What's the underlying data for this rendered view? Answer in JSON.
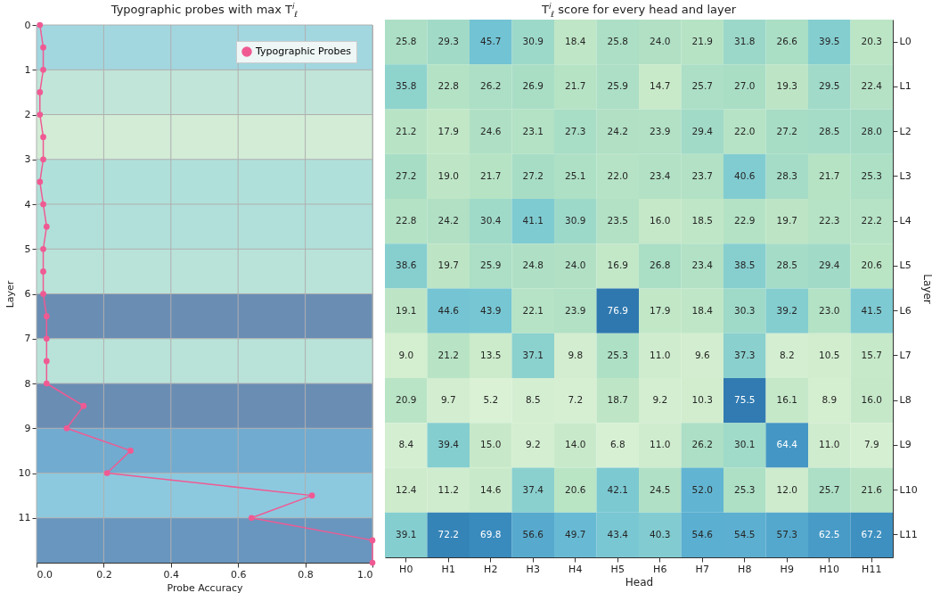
{
  "chart_data": [
    {
      "type": "line",
      "title": "Typographic probes with max T$^{i}$$_{ℓ}$",
      "xlabel": "Probe Accuracy",
      "ylabel": "Layer",
      "orientation": "horizontal",
      "xlim": [
        0,
        1
      ],
      "xticks": [
        {
          "value": 0,
          "label": "0.0"
        },
        0.2,
        0.4,
        0.6,
        0.8,
        {
          "value": 1,
          "label": "1.0"
        }
      ],
      "ylim": [
        12,
        0
      ],
      "yticks": [
        0,
        1,
        2,
        3,
        4,
        5,
        6,
        7,
        8,
        9,
        10,
        11
      ],
      "grid": true,
      "legend": "top right",
      "marker": "circle",
      "line_style": "solid",
      "series": [
        {
          "name": "Typographic Probes",
          "color": "#f05a93",
          "x": [
            0,
            0.5,
            1,
            1.5,
            2,
            2.5,
            3,
            3.5,
            4,
            4.5,
            5,
            5.5,
            6,
            6.5,
            7,
            7.5,
            8,
            8.5,
            9,
            9.5,
            10,
            10.5,
            11,
            11.5,
            12
          ],
          "values": [
            0.01,
            0.02,
            0.02,
            0.01,
            0.01,
            0.02,
            0.02,
            0.01,
            0.02,
            0.03,
            0.02,
            0.02,
            0.02,
            0.03,
            0.03,
            0.03,
            0.03,
            0.14,
            0.09,
            0.28,
            0.21,
            0.82,
            0.64,
            1.0,
            1.0
          ]
        }
      ],
      "bands": [
        {
          "axis": "y",
          "from": 0,
          "to": 1,
          "color": "#a2d7e0"
        },
        {
          "axis": "y",
          "from": 1,
          "to": 2,
          "color": "#c1e5d8"
        },
        {
          "axis": "y",
          "from": 2,
          "to": 3,
          "color": "#d2ecd6"
        },
        {
          "axis": "y",
          "from": 3,
          "to": 4,
          "color": "#b0e0da"
        },
        {
          "axis": "y",
          "from": 4,
          "to": 5,
          "color": "#b1e0da"
        },
        {
          "axis": "y",
          "from": 5,
          "to": 6,
          "color": "#b9e3d9"
        },
        {
          "axis": "y",
          "from": 6,
          "to": 7,
          "color": "#6a8db4"
        },
        {
          "axis": "y",
          "from": 7,
          "to": 8,
          "color": "#b9e3d9"
        },
        {
          "axis": "y",
          "from": 8,
          "to": 9,
          "color": "#6a8db4"
        },
        {
          "axis": "y",
          "from": 9,
          "to": 10,
          "color": "#71abd0"
        },
        {
          "axis": "y",
          "from": 10,
          "to": 11,
          "color": "#8cc9df"
        },
        {
          "axis": "y",
          "from": 11,
          "to": 12,
          "color": "#6896bf"
        }
      ]
    },
    {
      "type": "heatmap",
      "title": "T$^{i}$$_{ℓ}$ score for every head and layer",
      "xlabel": "Head",
      "ylabel": "Layer",
      "categories": [
        "H0",
        "H1",
        "H2",
        "H3",
        "H4",
        "H5",
        "H6",
        "H7",
        "H8",
        "H9",
        "H10",
        "H11"
      ],
      "y_categories": [
        "L0",
        "L1",
        "L2",
        "L3",
        "L4",
        "L5",
        "L6",
        "L7",
        "L8",
        "L9",
        "L10",
        "L11"
      ],
      "cell_labels": [
        [
          "25.8",
          "29.3",
          "45.7",
          "30.9",
          "18.4",
          "25.8",
          "24.0",
          "21.9",
          "31.8",
          "26.6",
          "39.5",
          "20.3"
        ],
        [
          "35.8",
          "22.8",
          "26.2",
          "26.9",
          "21.7",
          "25.9",
          "14.7",
          "25.7",
          "27.0",
          "19.3",
          "29.5",
          "22.4"
        ],
        [
          "21.2",
          "17.9",
          "24.6",
          "23.1",
          "27.3",
          "24.2",
          "23.9",
          "29.4",
          "22.0",
          "27.2",
          "28.5",
          "28.0"
        ],
        [
          "27.2",
          "19.0",
          "21.7",
          "27.2",
          "25.1",
          "22.0",
          "23.4",
          "23.7",
          "40.6",
          "28.3",
          "21.7",
          "25.3"
        ],
        [
          "22.8",
          "24.2",
          "30.4",
          "41.1",
          "30.9",
          "23.5",
          "16.0",
          "18.5",
          "22.9",
          "19.7",
          "22.3",
          "22.2"
        ],
        [
          "38.6",
          "19.7",
          "25.9",
          "24.8",
          "24.0",
          "16.9",
          "26.8",
          "23.4",
          "38.5",
          "28.5",
          "29.4",
          "20.6"
        ],
        [
          "19.1",
          "44.6",
          "43.9",
          "22.1",
          "23.9",
          "76.9",
          "17.9",
          "18.4",
          "30.3",
          "39.2",
          "23.0",
          "41.5"
        ],
        [
          "9.0",
          "21.2",
          "13.5",
          "37.1",
          "9.8",
          "25.3",
          "11.0",
          "9.6",
          "37.3",
          "8.2",
          "10.5",
          "15.7"
        ],
        [
          "20.9",
          "9.7",
          "5.2",
          "8.5",
          "7.2",
          "18.7",
          "9.2",
          "10.3",
          "75.5",
          "16.1",
          "8.9",
          "16.0"
        ],
        [
          "8.4",
          "39.4",
          "15.0",
          "9.2",
          "14.0",
          "6.8",
          "11.0",
          "26.2",
          "30.1",
          "64.4",
          "11.0",
          "7.9"
        ],
        [
          "12.4",
          "11.2",
          "14.6",
          "37.4",
          "20.6",
          "42.1",
          "24.5",
          "52.0",
          "25.3",
          "12.0",
          "25.7",
          "21.6"
        ],
        [
          "39.1",
          "72.2",
          "69.8",
          "56.6",
          "49.7",
          "43.4",
          "40.3",
          "54.6",
          "54.5",
          "57.3",
          "62.5",
          "67.2"
        ]
      ],
      "cells": [
        [
          25.8,
          29.3,
          45.7,
          30.9,
          18.4,
          25.8,
          24.0,
          21.9,
          31.8,
          26.6,
          39.5,
          20.3
        ],
        [
          35.8,
          22.8,
          26.2,
          26.9,
          21.7,
          25.9,
          14.7,
          25.7,
          27.0,
          19.3,
          29.5,
          22.4
        ],
        [
          21.2,
          17.9,
          24.6,
          23.1,
          27.3,
          24.2,
          23.9,
          29.4,
          22.0,
          27.2,
          28.5,
          28.0
        ],
        [
          27.2,
          19.0,
          21.7,
          27.2,
          25.1,
          22.0,
          23.4,
          23.7,
          40.6,
          28.3,
          21.7,
          25.3
        ],
        [
          22.8,
          24.2,
          30.4,
          41.1,
          30.9,
          23.5,
          16.0,
          18.5,
          22.9,
          19.7,
          22.3,
          22.2
        ],
        [
          38.6,
          19.7,
          25.9,
          24.8,
          24.0,
          16.9,
          26.8,
          23.4,
          38.5,
          28.5,
          29.4,
          20.6
        ],
        [
          19.1,
          44.6,
          43.9,
          22.1,
          23.9,
          76.9,
          17.9,
          18.4,
          30.3,
          39.2,
          23.0,
          41.5
        ],
        [
          9.0,
          21.2,
          13.5,
          37.1,
          9.8,
          25.3,
          11.0,
          9.6,
          37.3,
          8.2,
          10.5,
          15.7
        ],
        [
          20.9,
          9.7,
          5.2,
          8.5,
          7.2,
          18.7,
          9.2,
          10.3,
          75.5,
          16.1,
          8.9,
          16.0
        ],
        [
          8.4,
          39.4,
          15.0,
          9.2,
          14.0,
          6.8,
          11.0,
          26.2,
          30.1,
          64.4,
          11.0,
          7.9
        ],
        [
          12.4,
          11.2,
          14.6,
          37.4,
          20.6,
          42.1,
          24.5,
          52.0,
          25.3,
          12.0,
          25.7,
          21.6
        ],
        [
          39.1,
          72.2,
          69.8,
          56.6,
          49.7,
          43.4,
          40.3,
          54.6,
          54.5,
          57.3,
          62.5,
          67.2
        ]
      ]
    }
  ]
}
